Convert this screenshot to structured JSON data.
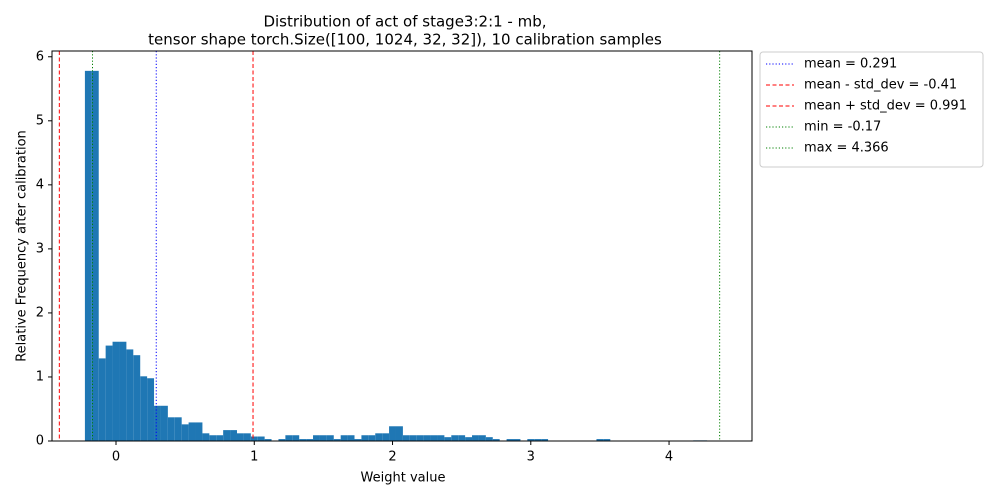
{
  "chart_data": {
    "type": "histogram",
    "title": [
      "Distribution of act of stage3:2:1 - mb,",
      "tensor shape torch.Size([100, 1024, 32, 32]), 10 calibration samples"
    ],
    "xlabel": "Weight value",
    "ylabel": "Relative Frequency after calibration",
    "color": "#1f77b4",
    "bins": [
      -0.225,
      -0.175,
      -0.125,
      -0.075,
      -0.025,
      0.025,
      0.075,
      0.125,
      0.175,
      0.225,
      0.275,
      0.325,
      0.375,
      0.425,
      0.475,
      0.525,
      0.575,
      0.625,
      0.675,
      0.725,
      0.775,
      0.825,
      0.875,
      0.925,
      0.975,
      1.025,
      1.075,
      1.125,
      1.175,
      1.225,
      1.275,
      1.325,
      1.375,
      1.425,
      1.475,
      1.525,
      1.575,
      1.625,
      1.675,
      1.725,
      1.775,
      1.825,
      1.875,
      1.925,
      1.975,
      2.025,
      2.075,
      2.125,
      2.175,
      2.225,
      2.275,
      2.325,
      2.375,
      2.425,
      2.475,
      2.525,
      2.575,
      2.625,
      2.675,
      2.725,
      2.775,
      2.825,
      2.875,
      2.925,
      2.975,
      3.025,
      3.075,
      3.125,
      3.175,
      3.225,
      3.275,
      3.325,
      3.375,
      3.425,
      3.475,
      3.525,
      3.575,
      3.625,
      3.675,
      3.725,
      3.775,
      3.825,
      3.875,
      3.925,
      3.975,
      4.025,
      4.075,
      4.125,
      4.175,
      4.225,
      4.275
    ],
    "counts": [
      5.78,
      5.78,
      1.29,
      1.49,
      1.55,
      1.55,
      1.43,
      1.34,
      1.01,
      0.98,
      0.55,
      0.55,
      0.37,
      0.37,
      0.26,
      0.29,
      0.29,
      0.12,
      0.09,
      0.09,
      0.17,
      0.17,
      0.12,
      0.12,
      0.07,
      0.07,
      0.03,
      0,
      0.03,
      0.09,
      0.09,
      0.03,
      0.03,
      0.09,
      0.09,
      0.09,
      0.03,
      0.09,
      0.09,
      0.03,
      0.09,
      0.09,
      0.12,
      0.12,
      0.23,
      0.23,
      0.09,
      0.09,
      0.09,
      0.09,
      0.09,
      0.09,
      0.06,
      0.09,
      0.09,
      0.06,
      0.09,
      0.09,
      0.06,
      0.03,
      0,
      0.03,
      0.03,
      0,
      0.03,
      0.03,
      0.03,
      0,
      0,
      0,
      0,
      0,
      0,
      0,
      0.03,
      0.03,
      0,
      0,
      0,
      0,
      0,
      0,
      0,
      0,
      0,
      0,
      0,
      0,
      0.01,
      0.01
    ],
    "xlim": [
      -0.463,
      4.6
    ],
    "ylim": [
      0,
      6.09
    ],
    "xticks": [
      0,
      1,
      2,
      3,
      4
    ],
    "yticks": [
      0,
      1,
      2,
      3,
      4,
      5,
      6
    ],
    "lines": [
      {
        "label": "mean = 0.291",
        "value": 0.291,
        "color": "blue",
        "style": "dotted"
      },
      {
        "label": "mean - std_dev = -0.41",
        "value": -0.41,
        "color": "red",
        "style": "dashed"
      },
      {
        "label": "mean + std_dev = 0.991",
        "value": 0.991,
        "color": "red",
        "style": "dashed"
      },
      {
        "label": "min = -0.17",
        "value": -0.17,
        "color": "green",
        "style": "dotted"
      },
      {
        "label": "max = 4.366",
        "value": 4.366,
        "color": "green",
        "style": "dotted"
      }
    ],
    "legend": "outside upper right"
  }
}
